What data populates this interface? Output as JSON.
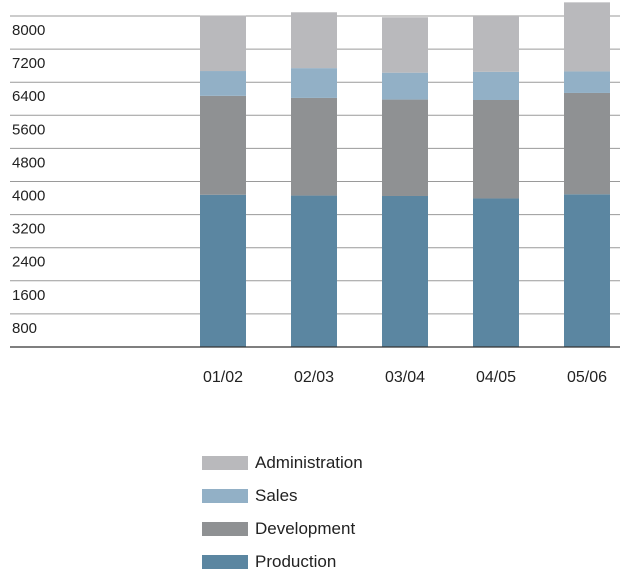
{
  "chart_data": {
    "type": "bar",
    "stacked": true,
    "categories": [
      "01/02",
      "02/03",
      "03/04",
      "04/05",
      "05/06"
    ],
    "series": [
      {
        "name": "Production",
        "color": "#5b86a1",
        "values": [
          3680,
          3660,
          3650,
          3590,
          3690
        ]
      },
      {
        "name": "Development",
        "color": "#8f9193",
        "values": [
          2390,
          2360,
          2330,
          2380,
          2450
        ]
      },
      {
        "name": "Sales",
        "color": "#92b0c6",
        "values": [
          600,
          720,
          650,
          680,
          520
        ]
      },
      {
        "name": "Administration",
        "color": "#b9b9bc",
        "values": [
          1340,
          1350,
          1340,
          1350,
          1670
        ]
      }
    ],
    "yticks": [
      800,
      1600,
      2400,
      3200,
      4000,
      4800,
      5600,
      6400,
      7200,
      8000
    ],
    "ylim": [
      0,
      8200
    ],
    "grid": true,
    "legend_position": "bottom"
  }
}
